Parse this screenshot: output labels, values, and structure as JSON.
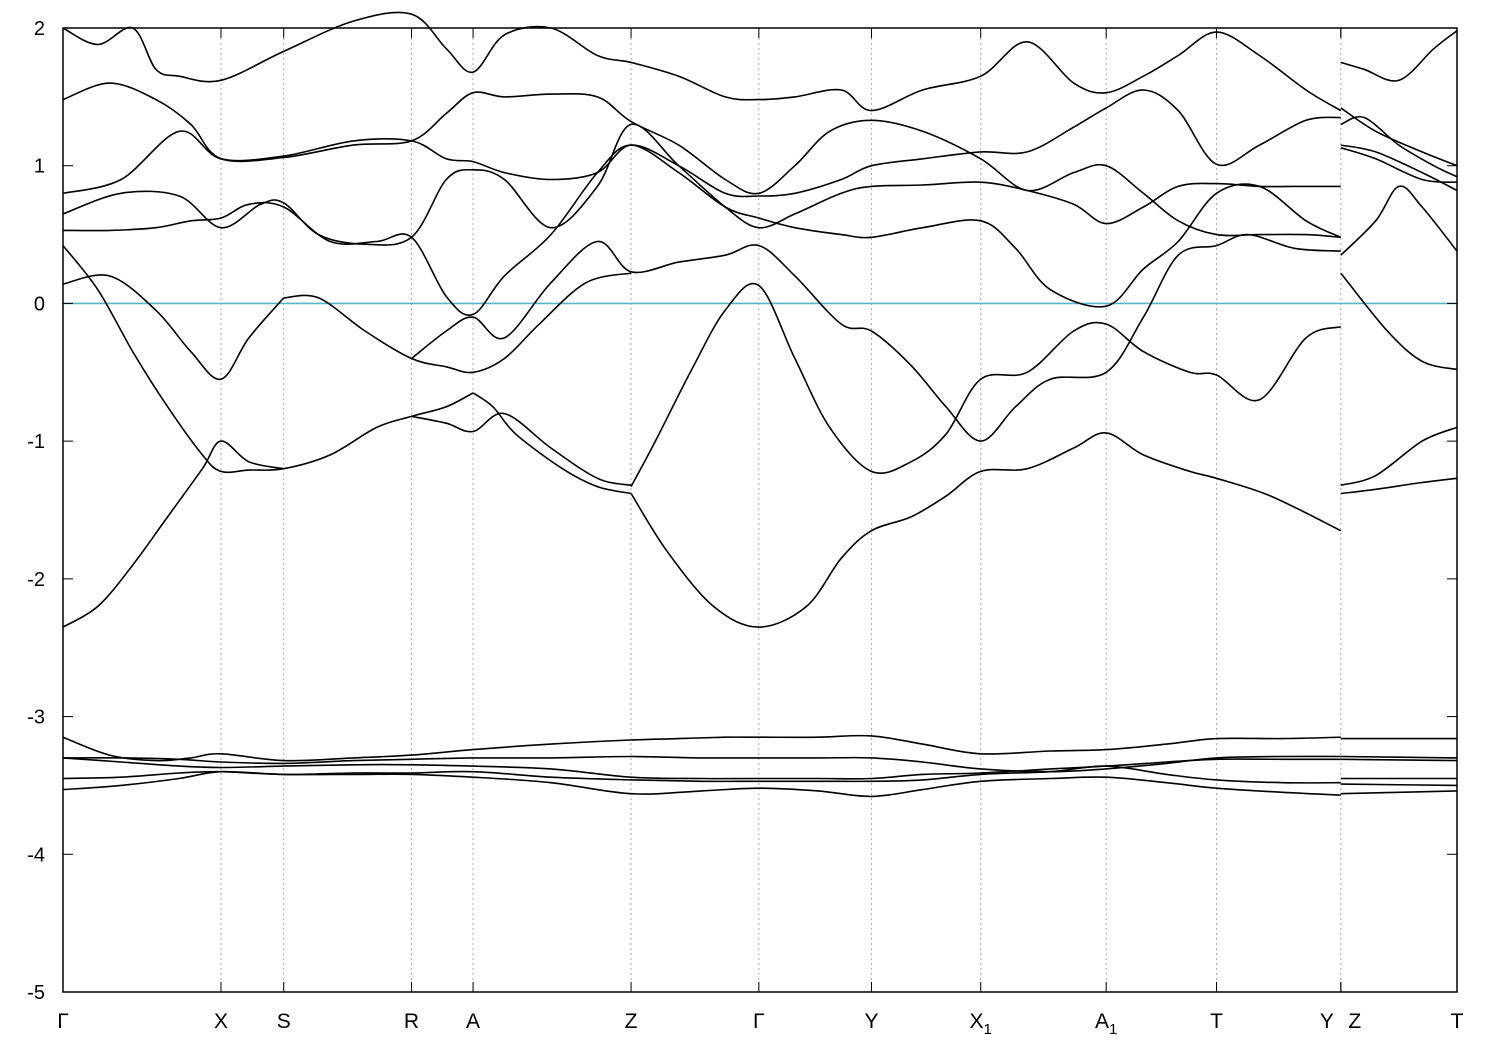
{
  "chart_data": {
    "type": "line",
    "title": "",
    "xlabel": "",
    "ylabel": "",
    "ylim": [
      -5,
      2
    ],
    "yticks": [
      -5,
      -4,
      -3,
      -2,
      -1,
      0,
      1,
      2
    ],
    "ytick_labels": [
      "-5",
      "-4",
      "-3",
      "-2",
      "-1",
      "0",
      "1",
      "2"
    ],
    "xlim": [
      0,
      12
    ],
    "grid": "vertical dotted lines at high-symmetry points",
    "fermi_level": 0,
    "kpoints": [
      {
        "x": 0.0,
        "label": "Γ",
        "sub": ""
      },
      {
        "x": 1.36,
        "label": "X",
        "sub": ""
      },
      {
        "x": 1.9,
        "label": "S",
        "sub": ""
      },
      {
        "x": 3.0,
        "label": "R",
        "sub": ""
      },
      {
        "x": 3.53,
        "label": "A",
        "sub": ""
      },
      {
        "x": 4.89,
        "label": "Z",
        "sub": ""
      },
      {
        "x": 5.99,
        "label": "Γ",
        "sub": ""
      },
      {
        "x": 6.96,
        "label": "Y",
        "sub": ""
      },
      {
        "x": 7.9,
        "label": "X",
        "sub": "1"
      },
      {
        "x": 8.98,
        "label": "A",
        "sub": "1"
      },
      {
        "x": 9.93,
        "label": "T",
        "sub": ""
      },
      {
        "x": 11.0,
        "label": "Y",
        "sub": ""
      },
      {
        "x": 11.0,
        "label": "Z",
        "sub": ""
      },
      {
        "x": 12.0,
        "label": "T",
        "sub": ""
      }
    ],
    "series": [
      {
        "x": [
          0.0,
          0.3,
          0.6,
          0.9,
          1.2,
          1.36,
          1.6,
          1.9
        ],
        "values": [
          -2.35,
          -2.2,
          -1.9,
          -1.55,
          -1.2,
          -1.0,
          -1.15,
          -1.2
        ]
      },
      {
        "x": [
          0.0,
          0.3,
          0.6,
          0.9,
          1.2,
          1.36,
          1.6,
          1.9,
          2.3,
          2.7,
          3.0,
          3.3,
          3.53
        ],
        "values": [
          0.42,
          0.1,
          -0.35,
          -0.75,
          -1.1,
          -1.22,
          -1.21,
          -1.2,
          -1.1,
          -0.9,
          -0.82,
          -0.75,
          -0.65
        ]
      },
      {
        "x": [
          0.0,
          0.4,
          0.8,
          1.1,
          1.36,
          1.6,
          1.9
        ],
        "values": [
          0.14,
          0.2,
          -0.05,
          -0.35,
          -0.55,
          -0.25,
          0.04
        ]
      },
      {
        "x": [
          1.9,
          2.2,
          2.6,
          3.0,
          3.3,
          3.53,
          3.8,
          4.1,
          4.5,
          4.89
        ],
        "values": [
          0.04,
          0.04,
          -0.2,
          -0.4,
          -0.46,
          -0.5,
          -0.4,
          -0.15,
          0.15,
          0.22
        ]
      },
      {
        "x": [
          3.0,
          3.3,
          3.53,
          3.8,
          4.2,
          4.6,
          4.89
        ],
        "values": [
          -0.82,
          -0.87,
          -0.93,
          -0.8,
          -1.05,
          -1.27,
          -1.32
        ]
      },
      {
        "x": [
          3.53,
          3.7,
          3.9,
          4.3,
          4.6,
          4.89
        ],
        "values": [
          -0.65,
          -0.75,
          -0.95,
          -1.2,
          -1.33,
          -1.38
        ]
      },
      {
        "x": [
          4.89,
          5.2,
          5.6,
          5.99,
          6.4,
          6.7,
          6.96,
          7.3,
          7.6,
          7.9,
          8.3,
          8.7,
          8.98,
          9.3,
          9.7,
          9.93,
          10.4,
          11.0
        ],
        "values": [
          -1.38,
          -1.8,
          -2.2,
          -2.35,
          -2.2,
          -1.85,
          -1.65,
          -1.55,
          -1.4,
          -1.22,
          -1.2,
          -1.05,
          -0.94,
          -1.1,
          -1.22,
          -1.27,
          -1.4,
          -1.65
        ]
      },
      {
        "x": [
          4.89,
          5.1,
          5.4,
          5.7,
          5.99,
          6.3,
          6.6,
          6.96,
          7.3,
          7.6,
          7.9,
          8.3,
          8.7,
          8.98,
          9.3,
          9.7,
          9.93,
          10.3,
          10.7,
          11.0
        ],
        "values": [
          -1.33,
          -1.0,
          -0.5,
          -0.05,
          0.13,
          -0.4,
          -0.9,
          -1.22,
          -1.15,
          -0.95,
          -0.55,
          -0.5,
          -0.2,
          -0.15,
          -0.35,
          -0.5,
          -0.52,
          -0.7,
          -0.25,
          -0.17
        ]
      },
      {
        "x": [
          3.0,
          3.3,
          3.53,
          3.8,
          4.2,
          4.6,
          4.89,
          5.3,
          5.7,
          5.99,
          6.3,
          6.7,
          6.96,
          7.3,
          7.6,
          7.9,
          8.2,
          8.5,
          8.98,
          9.3,
          9.6,
          9.93,
          10.2,
          10.6,
          11.0
        ],
        "values": [
          -0.4,
          -0.2,
          -0.1,
          -0.25,
          0.15,
          0.45,
          0.23,
          0.3,
          0.35,
          0.42,
          0.2,
          -0.15,
          -0.2,
          -0.45,
          -0.75,
          -1.0,
          -0.75,
          -0.55,
          -0.5,
          -0.1,
          0.35,
          0.42,
          0.5,
          0.4,
          0.38
        ]
      },
      {
        "x": [
          0.0,
          0.4,
          0.8,
          1.1,
          1.36,
          1.6,
          1.9,
          2.3,
          2.7,
          3.0,
          3.3,
          3.53,
          3.8,
          4.2,
          4.6,
          4.89,
          5.3,
          5.7,
          5.99,
          6.3,
          6.7,
          6.96,
          7.4,
          7.9,
          8.2,
          8.5,
          8.98,
          9.3,
          9.6,
          9.93,
          10.3,
          10.7,
          11.0
        ],
        "values": [
          0.53,
          0.53,
          0.55,
          0.6,
          0.62,
          0.72,
          0.7,
          0.45,
          0.45,
          0.48,
          0.05,
          -0.08,
          0.2,
          0.5,
          0.95,
          1.15,
          0.95,
          0.7,
          0.62,
          0.55,
          0.5,
          0.48,
          0.55,
          0.6,
          0.4,
          0.1,
          -0.02,
          0.25,
          0.45,
          0.8,
          0.85,
          0.6,
          0.48
        ]
      },
      {
        "x": [
          0.0,
          0.5,
          1.0,
          1.36,
          1.7,
          1.9,
          2.2,
          2.6,
          3.0,
          3.3,
          3.53,
          3.8,
          4.2,
          4.6,
          4.89,
          5.3,
          5.7,
          5.99,
          6.3,
          6.7,
          6.96,
          7.4,
          7.9,
          8.3,
          8.7,
          8.98,
          9.3,
          9.6,
          9.93,
          10.3,
          10.7,
          11.0
        ],
        "values": [
          0.65,
          0.8,
          0.78,
          0.55,
          0.72,
          0.73,
          0.5,
          0.43,
          0.48,
          0.9,
          0.97,
          0.9,
          0.55,
          0.85,
          1.3,
          1.0,
          0.7,
          0.55,
          0.65,
          0.8,
          0.85,
          0.86,
          0.88,
          0.82,
          0.72,
          0.58,
          0.7,
          0.85,
          0.87,
          0.85,
          0.85,
          0.85
        ]
      },
      {
        "x": [
          0.0,
          0.5,
          1.0,
          1.36,
          1.9,
          2.5,
          3.0,
          3.3,
          3.53,
          3.8,
          4.2,
          4.6,
          4.89,
          5.3,
          5.7,
          5.99,
          6.3,
          6.7,
          6.96,
          7.4,
          7.9,
          8.3,
          8.7,
          8.98,
          9.3,
          9.6,
          9.93,
          10.3,
          10.7,
          11.0
        ],
        "values": [
          0.8,
          0.9,
          1.25,
          1.05,
          1.07,
          1.18,
          1.18,
          1.05,
          1.03,
          0.95,
          0.9,
          0.95,
          1.15,
          1.0,
          0.8,
          0.78,
          0.8,
          0.9,
          1.0,
          1.05,
          1.1,
          1.1,
          1.28,
          1.42,
          1.55,
          1.4,
          1.01,
          1.15,
          1.33,
          1.35
        ]
      },
      {
        "x": [
          0.0,
          0.4,
          0.8,
          1.1,
          1.36,
          1.9,
          2.5,
          3.0,
          3.3,
          3.53,
          3.8,
          4.2,
          4.6,
          4.89,
          5.3,
          5.7,
          5.99,
          6.3,
          6.6,
          6.96,
          7.4,
          7.9,
          8.3,
          8.7,
          8.98,
          9.3,
          9.6,
          9.93,
          10.3,
          10.7,
          11.0
        ],
        "values": [
          1.48,
          1.6,
          1.48,
          1.3,
          1.05,
          1.06,
          1.15,
          1.18,
          1.38,
          1.53,
          1.5,
          1.52,
          1.5,
          1.32,
          1.15,
          0.9,
          0.8,
          1.0,
          1.25,
          1.33,
          1.25,
          1.05,
          0.82,
          0.95,
          1.0,
          0.8,
          0.6,
          0.5,
          0.5,
          0.5,
          0.48
        ]
      },
      {
        "x": [
          0.0,
          0.3,
          0.6,
          0.8,
          1.0,
          1.36,
          1.9,
          2.5,
          3.0,
          3.3,
          3.53,
          3.8,
          4.2,
          4.6,
          4.89,
          5.3,
          5.7,
          5.99,
          6.3,
          6.7,
          6.96,
          7.4,
          7.9,
          8.3,
          8.7,
          8.98,
          9.3,
          9.6,
          9.93,
          10.3,
          10.7,
          11.0
        ],
        "values": [
          2.0,
          1.88,
          2.0,
          1.7,
          1.65,
          1.62,
          1.83,
          2.05,
          2.1,
          1.85,
          1.68,
          1.95,
          2.0,
          1.8,
          1.75,
          1.65,
          1.5,
          1.48,
          1.5,
          1.55,
          1.4,
          1.55,
          1.65,
          1.9,
          1.6,
          1.53,
          1.65,
          1.8,
          1.97,
          1.8,
          1.55,
          1.4
        ]
      },
      {
        "x": [
          0.0,
          0.4,
          0.8,
          1.1,
          1.36,
          1.9,
          2.5,
          3.0,
          3.53,
          4.2,
          4.89,
          5.3,
          5.7,
          5.99,
          6.5,
          6.96,
          7.4,
          7.9,
          8.5,
          8.98,
          9.5,
          9.93,
          10.5,
          11.0
        ],
        "values": [
          -3.15,
          -3.28,
          -3.32,
          -3.3,
          -3.27,
          -3.32,
          -3.3,
          -3.28,
          -3.24,
          -3.2,
          -3.17,
          -3.16,
          -3.15,
          -3.15,
          -3.15,
          -3.14,
          -3.2,
          -3.27,
          -3.25,
          -3.24,
          -3.2,
          -3.16,
          -3.16,
          -3.15
        ]
      },
      {
        "x": [
          0.0,
          0.5,
          1.0,
          1.36,
          1.9,
          2.5,
          3.0,
          3.53,
          4.2,
          4.89,
          5.5,
          5.99,
          6.5,
          6.96,
          7.4,
          7.9,
          8.5,
          8.98,
          9.5,
          9.93,
          10.5,
          11.0
        ],
        "values": [
          -3.3,
          -3.3,
          -3.31,
          -3.33,
          -3.34,
          -3.32,
          -3.31,
          -3.3,
          -3.3,
          -3.29,
          -3.3,
          -3.3,
          -3.3,
          -3.3,
          -3.33,
          -3.38,
          -3.4,
          -3.38,
          -3.34,
          -3.3,
          -3.29,
          -3.29
        ]
      },
      {
        "x": [
          0.0,
          0.5,
          1.0,
          1.36,
          1.9,
          2.5,
          3.0,
          3.53,
          4.2,
          4.89,
          5.5,
          5.99,
          6.5,
          6.96,
          7.4,
          7.9,
          8.5,
          8.98,
          9.5,
          9.93,
          10.5,
          11.0
        ],
        "values": [
          -3.3,
          -3.33,
          -3.36,
          -3.37,
          -3.36,
          -3.35,
          -3.35,
          -3.36,
          -3.38,
          -3.44,
          -3.45,
          -3.45,
          -3.45,
          -3.45,
          -3.42,
          -3.41,
          -3.38,
          -3.36,
          -3.33,
          -3.31,
          -3.31,
          -3.31
        ]
      },
      {
        "x": [
          0.0,
          0.5,
          1.0,
          1.36,
          1.9,
          2.5,
          3.0,
          3.53,
          4.2,
          4.89,
          5.5,
          5.99,
          6.5,
          6.96,
          7.4,
          7.9,
          8.5,
          8.98,
          9.5,
          9.93,
          10.5,
          11.0
        ],
        "values": [
          -3.45,
          -3.44,
          -3.41,
          -3.4,
          -3.42,
          -3.41,
          -3.41,
          -3.4,
          -3.44,
          -3.46,
          -3.47,
          -3.47,
          -3.47,
          -3.47,
          -3.46,
          -3.42,
          -3.4,
          -3.36,
          -3.42,
          -3.46,
          -3.48,
          -3.48
        ]
      },
      {
        "x": [
          0.0,
          0.5,
          1.0,
          1.36,
          1.9,
          2.5,
          3.0,
          3.53,
          4.2,
          4.89,
          5.5,
          5.99,
          6.5,
          6.96,
          7.4,
          7.9,
          8.5,
          8.98,
          9.5,
          9.93,
          10.5,
          11.0
        ],
        "values": [
          -3.53,
          -3.5,
          -3.45,
          -3.4,
          -3.42,
          -3.42,
          -3.42,
          -3.44,
          -3.48,
          -3.56,
          -3.54,
          -3.52,
          -3.54,
          -3.58,
          -3.53,
          -3.47,
          -3.45,
          -3.44,
          -3.48,
          -3.52,
          -3.55,
          -3.57
        ]
      },
      {
        "x": [
          11.0,
          11.4,
          11.7,
          12.0
        ],
        "values": [
          0.22,
          -0.2,
          -0.42,
          -0.48
        ]
      },
      {
        "x": [
          11.0,
          11.3,
          11.7,
          12.0
        ],
        "values": [
          -1.32,
          -1.25,
          -1.0,
          -0.9
        ]
      },
      {
        "x": [
          11.0,
          11.3,
          11.7,
          12.0
        ],
        "values": [
          -1.38,
          -1.35,
          -1.3,
          -1.27
        ]
      },
      {
        "x": [
          11.0,
          11.3,
          11.5,
          11.7,
          12.0
        ],
        "values": [
          0.35,
          0.6,
          0.85,
          0.7,
          0.38
        ]
      },
      {
        "x": [
          11.0,
          11.3,
          11.7,
          12.0
        ],
        "values": [
          1.15,
          1.1,
          0.95,
          0.82
        ]
      },
      {
        "x": [
          11.0,
          11.3,
          11.7,
          12.0
        ],
        "values": [
          1.13,
          1.05,
          0.9,
          0.88
        ]
      },
      {
        "x": [
          11.0,
          11.2,
          11.5,
          11.8,
          12.0
        ],
        "values": [
          1.3,
          1.35,
          1.15,
          1.0,
          0.92
        ]
      },
      {
        "x": [
          11.0,
          11.3,
          11.7,
          12.0
        ],
        "values": [
          1.42,
          1.25,
          1.1,
          1.0
        ]
      },
      {
        "x": [
          11.0,
          11.2,
          11.5,
          11.8,
          12.0
        ],
        "values": [
          1.75,
          1.7,
          1.62,
          1.85,
          1.98
        ]
      },
      {
        "x": [
          11.0,
          12.0
        ],
        "values": [
          -3.16,
          -3.16
        ]
      },
      {
        "x": [
          11.0,
          12.0
        ],
        "values": [
          -3.29,
          -3.3
        ]
      },
      {
        "x": [
          11.0,
          12.0
        ],
        "values": [
          -3.31,
          -3.32
        ]
      },
      {
        "x": [
          11.0,
          12.0
        ],
        "values": [
          -3.45,
          -3.45
        ]
      },
      {
        "x": [
          11.0,
          12.0
        ],
        "values": [
          -3.49,
          -3.5
        ]
      },
      {
        "x": [
          11.0,
          12.0
        ],
        "values": [
          -3.56,
          -3.54
        ]
      }
    ]
  }
}
